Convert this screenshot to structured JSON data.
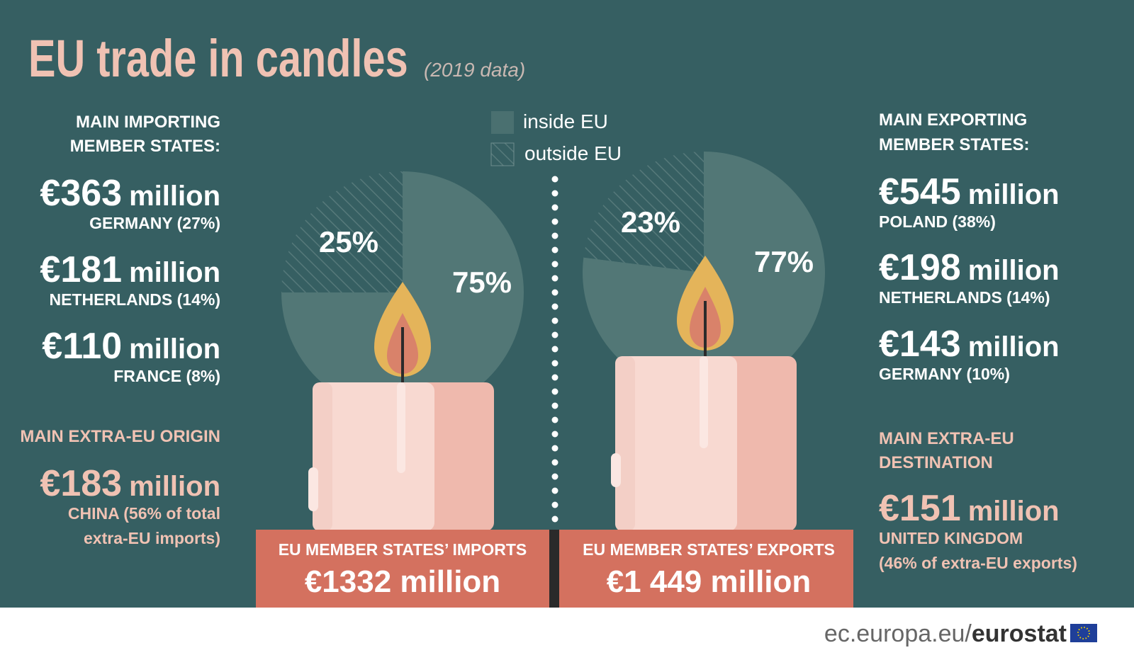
{
  "title": "EU trade in candles",
  "subtitle": "(2019 data)",
  "imports_panel": {
    "heading": [
      "MAIN IMPORTING",
      "MEMBER STATES:"
    ],
    "items": [
      {
        "amount": "€363",
        "unit": "million",
        "country": "GERMANY (27%)"
      },
      {
        "amount": "€181",
        "unit": "million",
        "country": "NETHERLANDS (14%)"
      },
      {
        "amount": "€110",
        "unit": "million",
        "country": "FRANCE (8%)"
      }
    ],
    "extra_heading": [
      "MAIN EXTRA-EU ORIGIN"
    ],
    "extra": {
      "amount": "€183",
      "unit": "million",
      "note": [
        "CHINA (56% of total",
        "extra-EU imports)"
      ]
    },
    "total_label": "EU MEMBER STATES’ IMPORTS",
    "total": "€1332 million"
  },
  "exports_panel": {
    "heading": [
      "MAIN EXPORTING",
      "MEMBER STATES:"
    ],
    "items": [
      {
        "amount": "€545",
        "unit": "million",
        "country": "POLAND (38%)"
      },
      {
        "amount": "€198",
        "unit": "million",
        "country": "NETHERLANDS (14%)"
      },
      {
        "amount": "€143",
        "unit": "million",
        "country": "GERMANY (10%)"
      }
    ],
    "extra_heading": [
      "MAIN EXTRA-EU",
      "DESTINATION"
    ],
    "extra": {
      "amount": "€151",
      "unit": "million",
      "note": [
        "UNITED KINGDOM",
        "(46% of extra-EU exports)"
      ]
    },
    "total_label": "EU MEMBER STATES’ EXPORTS",
    "total": "€1 449 million"
  },
  "chart_data": [
    {
      "type": "pie",
      "categories": [
        "inside EU",
        "outside EU"
      ],
      "values": [
        75,
        25
      ],
      "value_labels": [
        "75%",
        "25%"
      ],
      "colors": [
        "#527776",
        "#56797a"
      ]
    },
    {
      "type": "pie",
      "values": [
        77,
        23
      ],
      "value_labels": [
        "77%",
        "23%"
      ],
      "colors": [
        "#527776",
        "#56797a"
      ]
    }
  ],
  "footer": {
    "site": "ec.europa.eu/",
    "brand": "eurostat"
  }
}
